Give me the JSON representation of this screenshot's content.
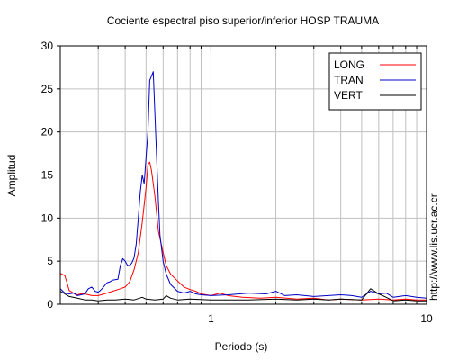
{
  "chart_data": {
    "type": "line",
    "title": "Cociente espectral piso superior/inferior  HOSP TRAUMA",
    "xlabel": "Periodo (s)",
    "ylabel": "Amplitud",
    "x_scale": "log",
    "xlim": [
      0.2,
      10
    ],
    "ylim": [
      0,
      30
    ],
    "x_tick_labels": [
      {
        "value": 1,
        "label": "1"
      },
      {
        "value": 10,
        "label": "10"
      }
    ],
    "y_ticks": [
      0,
      5,
      10,
      15,
      20,
      25,
      30
    ],
    "grid": true,
    "legend_position": "top-right",
    "series": [
      {
        "name": "LONG",
        "color": "#ff0000",
        "points": [
          [
            0.2,
            3.6
          ],
          [
            0.21,
            3.3
          ],
          [
            0.215,
            2.5
          ],
          [
            0.22,
            1.6
          ],
          [
            0.23,
            1.3
          ],
          [
            0.24,
            1.1
          ],
          [
            0.25,
            1.2
          ],
          [
            0.26,
            1.2
          ],
          [
            0.28,
            1.0
          ],
          [
            0.3,
            1.0
          ],
          [
            0.32,
            1.2
          ],
          [
            0.35,
            1.5
          ],
          [
            0.38,
            1.8
          ],
          [
            0.4,
            2.0
          ],
          [
            0.42,
            2.6
          ],
          [
            0.44,
            4.0
          ],
          [
            0.46,
            6.0
          ],
          [
            0.48,
            9.5
          ],
          [
            0.5,
            13.5
          ],
          [
            0.51,
            16.2
          ],
          [
            0.52,
            16.5
          ],
          [
            0.53,
            15.5
          ],
          [
            0.55,
            12.5
          ],
          [
            0.57,
            8.5
          ],
          [
            0.6,
            6.0
          ],
          [
            0.62,
            4.5
          ],
          [
            0.65,
            3.5
          ],
          [
            0.7,
            2.7
          ],
          [
            0.75,
            2.0
          ],
          [
            0.8,
            1.7
          ],
          [
            0.85,
            1.5
          ],
          [
            0.9,
            1.2
          ],
          [
            1.0,
            1.0
          ],
          [
            1.1,
            1.3
          ],
          [
            1.2,
            1.0
          ],
          [
            1.4,
            0.8
          ],
          [
            1.7,
            0.7
          ],
          [
            2.0,
            0.8
          ],
          [
            2.5,
            0.6
          ],
          [
            3.0,
            0.7
          ],
          [
            3.5,
            0.5
          ],
          [
            4.0,
            0.6
          ],
          [
            5.0,
            0.5
          ],
          [
            6.0,
            0.6
          ],
          [
            7.0,
            0.5
          ],
          [
            8.0,
            0.6
          ],
          [
            9.0,
            0.5
          ],
          [
            10.0,
            0.5
          ]
        ]
      },
      {
        "name": "TRAN",
        "color": "#0000c8",
        "points": [
          [
            0.2,
            1.8
          ],
          [
            0.21,
            1.3
          ],
          [
            0.22,
            1.2
          ],
          [
            0.23,
            1.3
          ],
          [
            0.24,
            1.0
          ],
          [
            0.25,
            1.1
          ],
          [
            0.26,
            1.2
          ],
          [
            0.27,
            1.8
          ],
          [
            0.28,
            2.0
          ],
          [
            0.29,
            1.5
          ],
          [
            0.3,
            1.4
          ],
          [
            0.31,
            1.7
          ],
          [
            0.33,
            2.5
          ],
          [
            0.34,
            2.6
          ],
          [
            0.35,
            2.8
          ],
          [
            0.37,
            2.9
          ],
          [
            0.38,
            4.5
          ],
          [
            0.39,
            5.3
          ],
          [
            0.4,
            5.0
          ],
          [
            0.41,
            4.5
          ],
          [
            0.42,
            4.5
          ],
          [
            0.43,
            4.8
          ],
          [
            0.44,
            5.4
          ],
          [
            0.45,
            7.0
          ],
          [
            0.46,
            10.0
          ],
          [
            0.47,
            13.0
          ],
          [
            0.48,
            15.0
          ],
          [
            0.49,
            14.0
          ],
          [
            0.5,
            17.0
          ],
          [
            0.51,
            20.0
          ],
          [
            0.52,
            26.0
          ],
          [
            0.53,
            26.5
          ],
          [
            0.54,
            27.0
          ],
          [
            0.55,
            22.0
          ],
          [
            0.56,
            17.0
          ],
          [
            0.57,
            12.0
          ],
          [
            0.58,
            8.0
          ],
          [
            0.6,
            5.0
          ],
          [
            0.62,
            3.5
          ],
          [
            0.65,
            2.3
          ],
          [
            0.7,
            1.5
          ],
          [
            0.75,
            1.3
          ],
          [
            0.8,
            1.5
          ],
          [
            0.85,
            1.2
          ],
          [
            0.9,
            1.1
          ],
          [
            1.0,
            1.0
          ],
          [
            1.2,
            1.1
          ],
          [
            1.5,
            1.3
          ],
          [
            1.8,
            1.2
          ],
          [
            2.0,
            1.5
          ],
          [
            2.2,
            1.0
          ],
          [
            2.5,
            1.1
          ],
          [
            3.0,
            0.9
          ],
          [
            3.5,
            1.0
          ],
          [
            4.0,
            1.1
          ],
          [
            4.5,
            1.0
          ],
          [
            5.0,
            0.8
          ],
          [
            5.5,
            1.5
          ],
          [
            6.0,
            1.2
          ],
          [
            6.5,
            1.3
          ],
          [
            7.0,
            0.8
          ],
          [
            8.0,
            1.0
          ],
          [
            9.0,
            0.8
          ],
          [
            10.0,
            0.7
          ]
        ]
      },
      {
        "name": "VERT",
        "color": "#000000",
        "points": [
          [
            0.2,
            1.5
          ],
          [
            0.21,
            1.2
          ],
          [
            0.22,
            0.9
          ],
          [
            0.24,
            0.7
          ],
          [
            0.26,
            0.5
          ],
          [
            0.28,
            0.5
          ],
          [
            0.3,
            0.4
          ],
          [
            0.33,
            0.5
          ],
          [
            0.36,
            0.5
          ],
          [
            0.4,
            0.6
          ],
          [
            0.44,
            0.5
          ],
          [
            0.48,
            0.8
          ],
          [
            0.5,
            0.6
          ],
          [
            0.55,
            0.5
          ],
          [
            0.6,
            0.6
          ],
          [
            0.62,
            1.0
          ],
          [
            0.65,
            0.7
          ],
          [
            0.7,
            0.5
          ],
          [
            0.8,
            0.6
          ],
          [
            1.0,
            0.5
          ],
          [
            1.5,
            0.5
          ],
          [
            2.0,
            0.6
          ],
          [
            2.5,
            0.5
          ],
          [
            3.0,
            0.6
          ],
          [
            3.5,
            0.5
          ],
          [
            4.0,
            0.6
          ],
          [
            5.0,
            0.5
          ],
          [
            5.5,
            1.8
          ],
          [
            6.0,
            1.2
          ],
          [
            6.5,
            0.8
          ],
          [
            7.0,
            0.4
          ],
          [
            8.0,
            0.5
          ],
          [
            9.0,
            0.4
          ],
          [
            10.0,
            0.4
          ]
        ]
      }
    ]
  },
  "watermark": "http://www.lis.ucr.ac.cr"
}
